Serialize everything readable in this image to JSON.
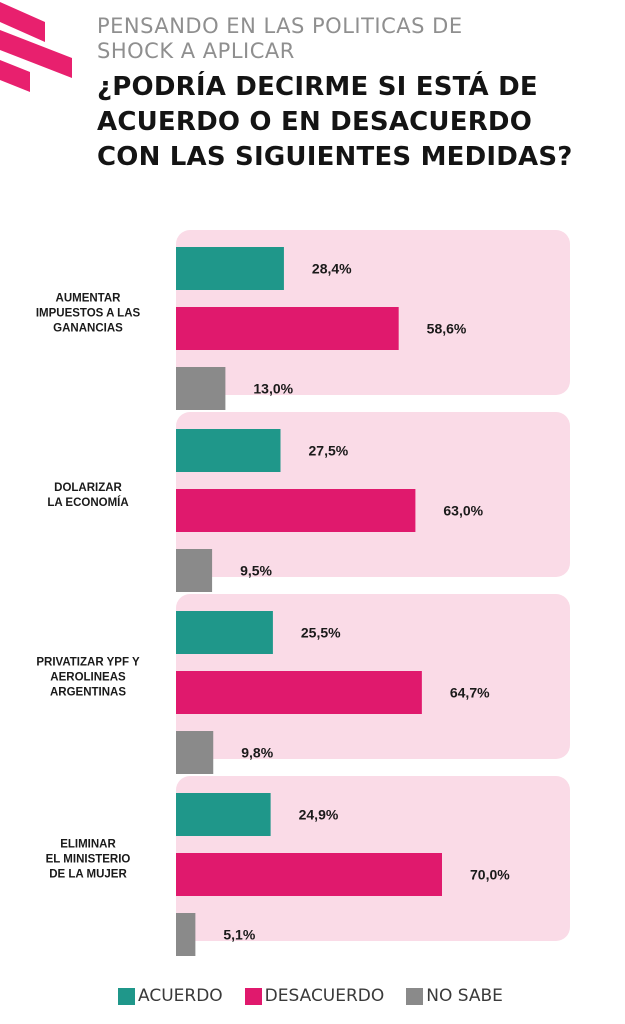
{
  "header": {
    "subtitle_line1": "PENSANDO EN LAS POLITICAS DE",
    "subtitle_line2": "SHOCK A APLICAR",
    "title_line1": "¿PODRÍA DECIRME SI ESTÁ DE",
    "title_line2": "ACUERDO O EN DESACUERDO",
    "title_line3": "CON LAS SIGUIENTES MEDIDAS?"
  },
  "colors": {
    "acuerdo": "#1f978a",
    "desacuerdo": "#e0196d",
    "no_sabe": "#8a8a8a",
    "panel": "#fadbe7",
    "logo": "#e8206e"
  },
  "chart_data": {
    "type": "bar",
    "orientation": "horizontal",
    "categories": [
      [
        "AUMENTAR",
        "IMPUESTOS A LAS",
        "GANANCIAS"
      ],
      [
        "DOLARIZAR",
        "LA ECONOMÍA"
      ],
      [
        "PRIVATIZAR YPF Y",
        "AEROLINEAS",
        "ARGENTINAS"
      ],
      [
        "ELIMINAR",
        "EL MINISTERIO",
        "DE LA MUJER"
      ]
    ],
    "series": [
      {
        "name": "ACUERDO",
        "values": [
          28.4,
          27.5,
          25.5,
          24.9
        ],
        "labels": [
          "28,4%",
          "27,5%",
          "25,5%",
          "24,9%"
        ]
      },
      {
        "name": "DESACUERDO",
        "values": [
          58.6,
          63.0,
          64.7,
          70.0
        ],
        "labels": [
          "58,6%",
          "63,0%",
          "64,7%",
          "70,0%"
        ]
      },
      {
        "name": "NO SABE",
        "values": [
          13.0,
          9.5,
          9.8,
          5.1
        ],
        "labels": [
          "13,0%",
          "9,5%",
          "9,8%",
          "5,1%"
        ]
      }
    ],
    "legend_position": "bottom"
  }
}
